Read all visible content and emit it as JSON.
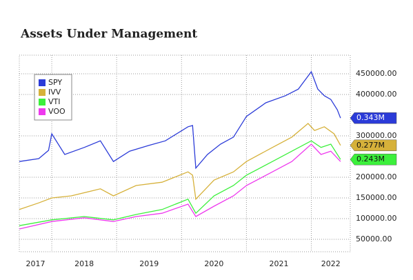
{
  "chart_data": {
    "type": "line",
    "title": "Assets Under Management",
    "xlim": [
      2017.5,
      2022.6
    ],
    "xticks": [
      2017,
      2018,
      2019,
      2020,
      2021,
      2022
    ],
    "ylim": [
      20000,
      495000
    ],
    "yticks": [
      {
        "value": 50000,
        "label": "50000.00"
      },
      {
        "value": 100000,
        "label": "100000.00"
      },
      {
        "value": 150000,
        "label": "150000.00"
      },
      {
        "value": 200000,
        "label": "200000.00"
      },
      {
        "value": 300000,
        "label": "300000.00"
      },
      {
        "value": 400000,
        "label": "400000.00"
      },
      {
        "value": 450000,
        "label": "450000.00"
      }
    ],
    "grid": true,
    "legend": "upper left",
    "series": [
      {
        "name": "SPY",
        "color": "#2b3bd8",
        "x": [
          2017.5,
          2017.8,
          2017.95,
          2018.0,
          2018.2,
          2018.5,
          2018.75,
          2018.95,
          2019.2,
          2019.5,
          2019.75,
          2020.1,
          2020.17,
          2020.22,
          2020.4,
          2020.6,
          2020.8,
          2021.0,
          2021.3,
          2021.6,
          2021.8,
          2022.0,
          2022.1,
          2022.2,
          2022.3,
          2022.4,
          2022.45
        ],
        "values": [
          238000,
          245000,
          265000,
          305000,
          255000,
          272000,
          288000,
          238000,
          263000,
          277000,
          288000,
          322000,
          325000,
          222000,
          255000,
          280000,
          297000,
          347000,
          380000,
          397000,
          413000,
          455000,
          413000,
          397000,
          388000,
          363000,
          343000
        ],
        "value_labels": [
          null,
          null,
          null,
          null,
          null,
          null,
          null,
          null,
          null,
          null,
          null,
          null,
          null,
          null,
          null,
          null,
          null,
          null,
          null,
          null,
          null,
          null,
          null,
          null,
          null,
          null,
          "0.343M"
        ]
      },
      {
        "name": "IVV",
        "color": "#d6b13a",
        "x": [
          2017.5,
          2017.8,
          2018.0,
          2018.3,
          2018.75,
          2018.95,
          2019.3,
          2019.7,
          2020.1,
          2020.17,
          2020.22,
          2020.5,
          2020.8,
          2021.0,
          2021.4,
          2021.7,
          2021.95,
          2022.05,
          2022.2,
          2022.35,
          2022.45
        ],
        "values": [
          122000,
          138000,
          150000,
          155000,
          172000,
          155000,
          180000,
          188000,
          213000,
          205000,
          147000,
          193000,
          213000,
          238000,
          272000,
          297000,
          330000,
          313000,
          322000,
          305000,
          277000
        ],
        "value_labels": [
          null,
          null,
          null,
          null,
          null,
          null,
          null,
          null,
          null,
          null,
          null,
          null,
          null,
          null,
          null,
          null,
          null,
          null,
          null,
          null,
          "0.277M"
        ]
      },
      {
        "name": "VTI",
        "color": "#3cf03c",
        "x": [
          2017.5,
          2018.0,
          2018.5,
          2018.95,
          2019.3,
          2019.7,
          2020.1,
          2020.22,
          2020.5,
          2020.8,
          2021.0,
          2021.4,
          2021.7,
          2022.0,
          2022.15,
          2022.3,
          2022.45
        ],
        "values": [
          83000,
          97000,
          105000,
          97000,
          110000,
          122000,
          147000,
          113000,
          155000,
          180000,
          205000,
          238000,
          263000,
          288000,
          272000,
          280000,
          243000
        ],
        "value_labels": [
          null,
          null,
          null,
          null,
          null,
          null,
          null,
          null,
          null,
          null,
          null,
          null,
          null,
          null,
          null,
          null,
          "0.243M"
        ]
      },
      {
        "name": "VOO",
        "color": "#ee38ee",
        "x": [
          2017.5,
          2018.0,
          2018.5,
          2018.95,
          2019.3,
          2019.7,
          2020.1,
          2020.22,
          2020.5,
          2020.8,
          2021.0,
          2021.4,
          2021.7,
          2022.0,
          2022.15,
          2022.3,
          2022.45
        ],
        "values": [
          75000,
          93000,
          102000,
          93000,
          105000,
          113000,
          135000,
          105000,
          130000,
          155000,
          180000,
          213000,
          238000,
          280000,
          255000,
          263000,
          238000
        ]
      }
    ]
  }
}
